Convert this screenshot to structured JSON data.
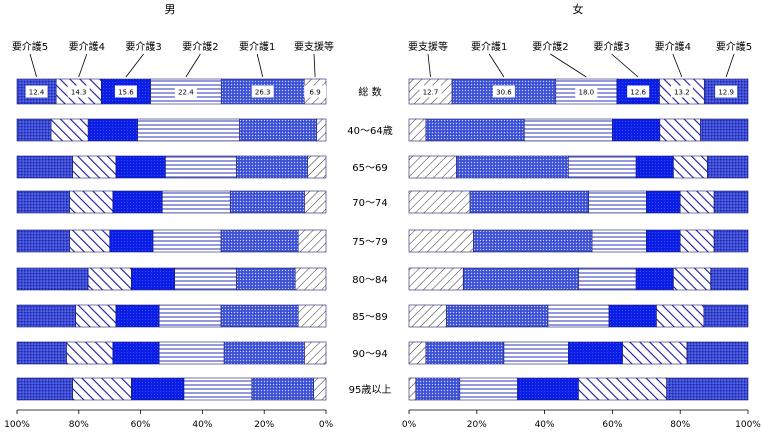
{
  "chart_data": [
    {
      "type": "bar",
      "orientation": "horizontal-stacked-100",
      "title": "男",
      "axis_direction": "reversed",
      "categories": [
        "総 数",
        "40～64歳",
        "65～69",
        "70～74",
        "75～79",
        "80～84",
        "85～89",
        "90～94",
        "95歳以上"
      ],
      "legend": [
        "要介護5",
        "要介護4",
        "要介護3",
        "要介護2",
        "要介護1",
        "要支援等"
      ],
      "series": [
        {
          "name": "要支援等",
          "values": [
            6.9,
            3,
            6,
            7,
            9,
            10,
            9,
            7,
            4
          ]
        },
        {
          "name": "要介護1",
          "values": [
            26.3,
            25,
            23,
            24,
            25,
            19,
            25,
            26,
            20
          ]
        },
        {
          "name": "要介護2",
          "values": [
            22.4,
            33,
            23,
            22,
            22,
            20,
            20,
            21,
            22
          ]
        },
        {
          "name": "要介護3",
          "values": [
            15.6,
            16,
            16,
            16,
            14,
            14,
            14,
            15,
            17
          ]
        },
        {
          "name": "要介護4",
          "values": [
            14.3,
            12,
            14,
            14,
            13,
            14,
            13,
            15,
            19
          ]
        },
        {
          "name": "要介護5",
          "values": [
            12.4,
            11,
            18,
            17,
            17,
            23,
            19,
            16,
            18
          ]
        }
      ],
      "data_labels_row": 0,
      "xlim": [
        0,
        100
      ],
      "xticks": [
        "100%",
        "80%",
        "60%",
        "40%",
        "20%",
        "0%"
      ]
    },
    {
      "type": "bar",
      "orientation": "horizontal-stacked-100",
      "title": "女",
      "axis_direction": "normal",
      "categories": [
        "総 数",
        "40～64歳",
        "65～69",
        "70～74",
        "75～79",
        "80～84",
        "85～89",
        "90～94",
        "95歳以上"
      ],
      "legend": [
        "要支援等",
        "要介護1",
        "要介護2",
        "要介護3",
        "要介護4",
        "要介護5"
      ],
      "series": [
        {
          "name": "要支援等",
          "values": [
            12.7,
            5,
            14,
            18,
            19,
            16,
            11,
            5,
            2
          ]
        },
        {
          "name": "要介護1",
          "values": [
            30.6,
            29,
            33,
            35,
            35,
            34,
            30,
            23,
            13
          ]
        },
        {
          "name": "要介護2",
          "values": [
            18.0,
            26,
            20,
            17,
            16,
            17,
            18,
            19,
            17
          ]
        },
        {
          "name": "要介護3",
          "values": [
            12.6,
            14,
            11,
            10,
            10,
            11,
            14,
            16,
            18
          ]
        },
        {
          "name": "要介護4",
          "values": [
            13.2,
            12,
            10,
            10,
            10,
            11,
            14,
            19,
            26
          ]
        },
        {
          "name": "要介護5",
          "values": [
            12.9,
            14,
            12,
            10,
            10,
            11,
            13,
            18,
            24
          ]
        }
      ],
      "data_labels_row": 0,
      "xlim": [
        0,
        100
      ],
      "xticks": [
        "0%",
        "20%",
        "40%",
        "60%",
        "80%",
        "100%"
      ]
    }
  ],
  "colors": {
    "要支援等": "#ffffff",
    "要介護1": "#4a5ee0",
    "要介護2": "#ffffff",
    "要介護3": "#0a1ee6",
    "要介護4": "#ffffff",
    "要介護5": "#3c4cd8",
    "stroke": "#1a1a7a",
    "hatch": "#1a1aa8"
  }
}
